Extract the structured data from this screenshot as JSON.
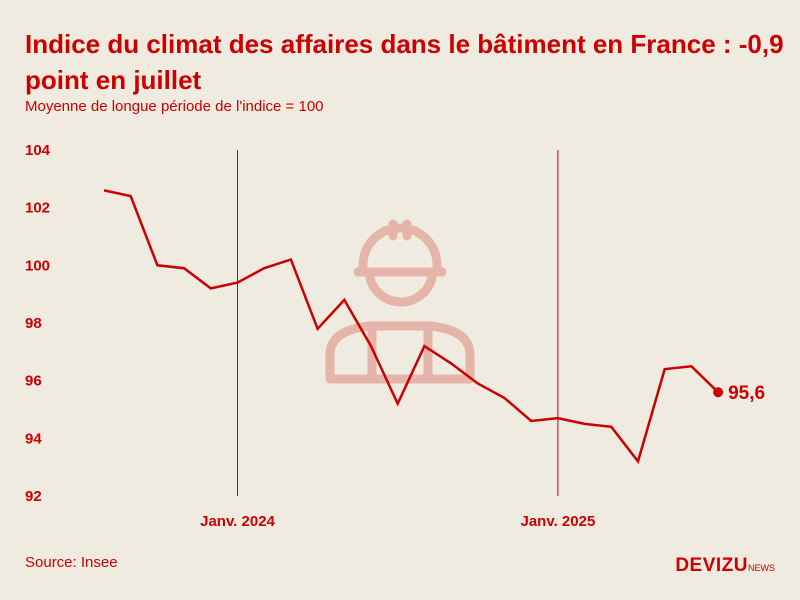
{
  "header": {
    "title": "Indice du climat des affaires dans le bâtiment en France : -0,9 point en juillet",
    "subtitle": "Moyenne de longue période de l'indice = 100"
  },
  "footer": {
    "source": "Source: Insee",
    "logo_main": "DEVIZU",
    "logo_suffix": "NEWS"
  },
  "icon": "worker-hardhat-icon",
  "colors": {
    "accent": "#cc0000",
    "background": "#efebe1",
    "watermark": "#e6b5a9"
  },
  "chart_data": {
    "type": "line",
    "x": [
      "2023-08",
      "2023-09",
      "2023-10",
      "2023-11",
      "2023-12",
      "2024-01",
      "2024-02",
      "2024-03",
      "2024-04",
      "2024-05",
      "2024-06",
      "2024-07",
      "2024-08",
      "2024-09",
      "2024-10",
      "2024-11",
      "2024-12",
      "2025-01",
      "2025-02",
      "2025-03",
      "2025-04",
      "2025-05",
      "2025-06",
      "2025-07"
    ],
    "series": [
      {
        "values": [
          102.6,
          102.4,
          100.0,
          99.9,
          99.2,
          99.4,
          99.9,
          100.2,
          97.8,
          98.8,
          97.2,
          95.2,
          97.2,
          96.6,
          95.9,
          95.4,
          94.6,
          94.7,
          94.5,
          94.4,
          93.2,
          96.4,
          96.5,
          95.6
        ]
      }
    ],
    "ylim": [
      92,
      104
    ],
    "yticks": [
      "92",
      "94",
      "96",
      "98",
      "100",
      "102",
      "104"
    ],
    "xtick_labels": [
      {
        "x": "2024-01",
        "label": "Janv. 2024"
      },
      {
        "x": "2025-01",
        "label": "Janv. 2025"
      }
    ],
    "last_value_label": "95,6",
    "grid": false,
    "legend": "none"
  }
}
